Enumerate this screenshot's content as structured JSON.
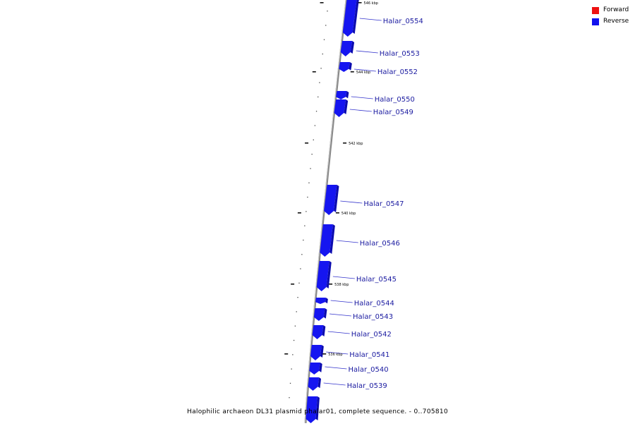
{
  "caption": "Halophilic archaeon DL31 plasmid phalar01, complete sequence. - 0..705810",
  "legend": [
    {
      "label": "Forward",
      "color": "#ee1111"
    },
    {
      "label": "Reverse",
      "color": "#1111ee"
    }
  ],
  "colors": {
    "reverse_gene": "#1515f0",
    "reverse_gene_dark": "#0b0bb0",
    "backbone": "#888888",
    "label_text": "#1a1aa0",
    "leader_line": "#3333cc"
  },
  "position_markers": [
    {
      "label": "546 kbp",
      "kbp": 546
    },
    {
      "label": "544 kbp",
      "kbp": 544
    },
    {
      "label": "542 kbp",
      "kbp": 542
    },
    {
      "label": "540 kbp",
      "kbp": 540
    },
    {
      "label": "538 kbp",
      "kbp": 538
    },
    {
      "label": "536 kbp",
      "kbp": 536
    }
  ],
  "genes": [
    {
      "name": "Halar_0554",
      "strand": "reverse"
    },
    {
      "name": "Halar_0553",
      "strand": "reverse"
    },
    {
      "name": "Halar_0552",
      "strand": "reverse"
    },
    {
      "name": "Halar_0550",
      "strand": "reverse"
    },
    {
      "name": "Halar_0549",
      "strand": "reverse"
    },
    {
      "name": "Halar_0547",
      "strand": "reverse"
    },
    {
      "name": "Halar_0546",
      "strand": "reverse"
    },
    {
      "name": "Halar_0545",
      "strand": "reverse"
    },
    {
      "name": "Halar_0544",
      "strand": "reverse"
    },
    {
      "name": "Halar_0543",
      "strand": "reverse"
    },
    {
      "name": "Halar_0542",
      "strand": "reverse"
    },
    {
      "name": "Halar_0541",
      "strand": "reverse"
    },
    {
      "name": "Halar_0540",
      "strand": "reverse"
    },
    {
      "name": "Halar_0539",
      "strand": "reverse"
    },
    {
      "name": "",
      "strand": "reverse"
    }
  ]
}
